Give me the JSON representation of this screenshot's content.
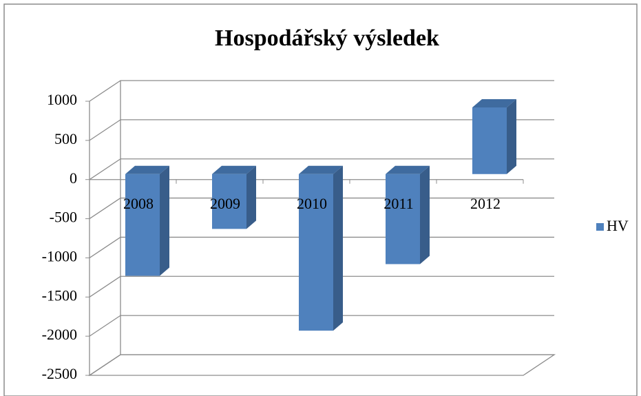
{
  "chart_data": {
    "type": "bar3d",
    "title": "Hospodářský výsledek",
    "categories": [
      "2008",
      "2009",
      "2010",
      "2011",
      "2012"
    ],
    "series": [
      {
        "name": "HV",
        "color": "#4f81bd",
        "values": [
          -1300,
          -700,
          -2000,
          -1150,
          850
        ]
      }
    ],
    "ylim": [
      -2500,
      1000
    ],
    "yticks": [
      -2500,
      -2000,
      -1500,
      -1000,
      -500,
      0,
      500,
      1000
    ],
    "grid": true,
    "legend": "right"
  }
}
